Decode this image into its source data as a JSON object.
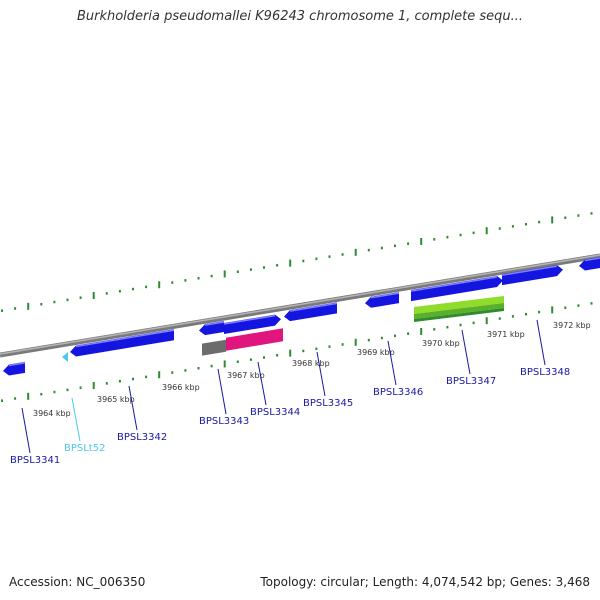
{
  "title": "Burkholderia pseudomallei K96243 chromosome 1, complete sequ...",
  "footer": {
    "accession": "Accession: NC_006350",
    "summary": "Topology: circular; Length: 4,074,542 bp; Genes: 3,468"
  },
  "colors": {
    "backbone": "#8a8a8a",
    "ticks": "#2e8b2e",
    "gene": "#1515e0",
    "gene_label": "#1a1aa0",
    "trna": "#4ec9ea",
    "pseudo": "#6c6c6c",
    "highlight": "#e0157e",
    "rna_band": "#8fdc2a",
    "rna_band_dark": "#2e8b2e"
  },
  "scale_labels": [
    "3964 kbp",
    "3965 kbp",
    "3966 kbp",
    "3967 kbp",
    "3968 kbp",
    "3969 kbp",
    "3970 kbp",
    "3971 kbp",
    "3972 kbp"
  ],
  "genes": [
    {
      "label": "BPSL3341",
      "type": "gene"
    },
    {
      "label": "BPSLt52",
      "type": "trna"
    },
    {
      "label": "BPSL3342",
      "type": "gene"
    },
    {
      "label": "BPSL3343",
      "type": "gene"
    },
    {
      "label": "BPSL3344",
      "type": "gene"
    },
    {
      "label": "BPSL3345",
      "type": "gene"
    },
    {
      "label": "BPSL3346",
      "type": "gene"
    },
    {
      "label": "BPSL3347",
      "type": "gene"
    },
    {
      "label": "BPSL3348",
      "type": "gene"
    }
  ]
}
